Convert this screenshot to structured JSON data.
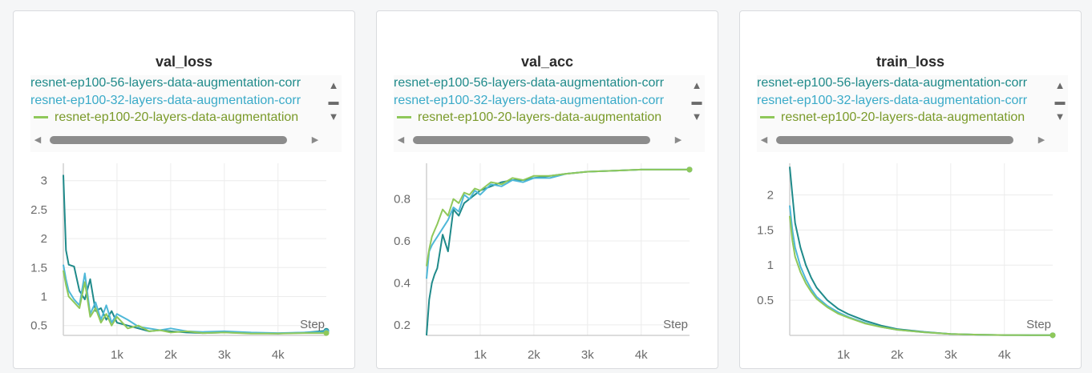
{
  "legend": [
    {
      "name": "resnet-ep100-56-layers-data-augmentation-corr",
      "color": "#1f8a8a",
      "show_swatch": false
    },
    {
      "name": "resnet-ep100-32-layers-data-augmentation-corr",
      "color": "#3aaac8",
      "show_swatch": false
    },
    {
      "name": "resnet-ep100-20-layers-data-augmentation",
      "color": "#7a9a2a",
      "show_swatch": true,
      "swatch_color": "#8fc85a"
    }
  ],
  "series_colors": {
    "s56": "#1f8a8a",
    "s32": "#4fb8d8",
    "s20": "#8fc85a"
  },
  "chart_data": [
    {
      "type": "line",
      "title": "val_loss",
      "xlabel": "Step",
      "xlim": [
        0,
        4900
      ],
      "ylim": [
        0.33,
        3.3
      ],
      "xticks": [
        {
          "v": 1000,
          "label": "1k"
        },
        {
          "v": 2000,
          "label": "2k"
        },
        {
          "v": 3000,
          "label": "3k"
        },
        {
          "v": 4000,
          "label": "4k"
        }
      ],
      "yticks": [
        {
          "v": 0.5,
          "label": "0.5"
        },
        {
          "v": 1,
          "label": "1"
        },
        {
          "v": 1.5,
          "label": "1.5"
        },
        {
          "v": 2,
          "label": "2"
        },
        {
          "v": 2.5,
          "label": "2.5"
        },
        {
          "v": 3,
          "label": "3"
        }
      ],
      "grid": true,
      "series": [
        {
          "key": "s56",
          "x": [
            0,
            50,
            100,
            200,
            300,
            400,
            500,
            600,
            700,
            800,
            900,
            1000,
            1200,
            1400,
            1600,
            1800,
            2000,
            2300,
            2600,
            3000,
            3500,
            4000,
            4500,
            4900
          ],
          "y": [
            3.1,
            1.8,
            1.55,
            1.52,
            1.1,
            0.95,
            1.3,
            0.75,
            0.8,
            0.6,
            0.75,
            0.55,
            0.5,
            0.45,
            0.4,
            0.42,
            0.4,
            0.38,
            0.37,
            0.38,
            0.37,
            0.36,
            0.38,
            0.41
          ]
        },
        {
          "key": "s32",
          "x": [
            0,
            50,
            100,
            200,
            300,
            400,
            500,
            600,
            700,
            800,
            900,
            1000,
            1200,
            1400,
            1600,
            1800,
            2000,
            2300,
            2600,
            3000,
            3500,
            4000,
            4500,
            4900
          ],
          "y": [
            1.55,
            1.3,
            1.1,
            0.95,
            0.85,
            1.4,
            0.7,
            0.9,
            0.6,
            0.85,
            0.55,
            0.7,
            0.6,
            0.48,
            0.45,
            0.42,
            0.45,
            0.4,
            0.39,
            0.4,
            0.38,
            0.37,
            0.38,
            0.39
          ]
        },
        {
          "key": "s20",
          "x": [
            0,
            50,
            100,
            200,
            300,
            400,
            500,
            600,
            700,
            800,
            900,
            1000,
            1200,
            1400,
            1600,
            1800,
            2000,
            2300,
            2600,
            3000,
            3500,
            4000,
            4500,
            4900
          ],
          "y": [
            1.45,
            1.2,
            1.0,
            0.9,
            0.8,
            1.25,
            0.65,
            0.8,
            0.55,
            0.7,
            0.5,
            0.65,
            0.45,
            0.5,
            0.4,
            0.42,
            0.38,
            0.4,
            0.37,
            0.38,
            0.36,
            0.36,
            0.37,
            0.37
          ]
        }
      ]
    },
    {
      "type": "line",
      "title": "val_acc",
      "xlabel": "Step",
      "xlim": [
        0,
        4900
      ],
      "ylim": [
        0.15,
        0.97
      ],
      "xticks": [
        {
          "v": 1000,
          "label": "1k"
        },
        {
          "v": 2000,
          "label": "2k"
        },
        {
          "v": 3000,
          "label": "3k"
        },
        {
          "v": 4000,
          "label": "4k"
        }
      ],
      "yticks": [
        {
          "v": 0.2,
          "label": "0.2"
        },
        {
          "v": 0.4,
          "label": "0.4"
        },
        {
          "v": 0.6,
          "label": "0.6"
        },
        {
          "v": 0.8,
          "label": "0.8"
        }
      ],
      "grid": true,
      "series": [
        {
          "key": "s56",
          "x": [
            0,
            50,
            100,
            150,
            200,
            300,
            400,
            500,
            600,
            700,
            800,
            900,
            1000,
            1200,
            1400,
            1600,
            1800,
            2000,
            2300,
            2600,
            3000,
            3500,
            4000,
            4500,
            4900
          ],
          "y": [
            0.15,
            0.32,
            0.4,
            0.44,
            0.47,
            0.63,
            0.55,
            0.75,
            0.72,
            0.78,
            0.8,
            0.82,
            0.84,
            0.86,
            0.88,
            0.89,
            0.89,
            0.9,
            0.91,
            0.92,
            0.93,
            0.935,
            0.94,
            0.94,
            0.94
          ]
        },
        {
          "key": "s32",
          "x": [
            0,
            50,
            100,
            150,
            200,
            300,
            400,
            500,
            600,
            700,
            800,
            900,
            1000,
            1200,
            1400,
            1600,
            1800,
            2000,
            2300,
            2600,
            3000,
            3500,
            4000,
            4500,
            4900
          ],
          "y": [
            0.42,
            0.55,
            0.58,
            0.6,
            0.62,
            0.66,
            0.7,
            0.76,
            0.74,
            0.82,
            0.8,
            0.84,
            0.82,
            0.87,
            0.86,
            0.89,
            0.88,
            0.9,
            0.9,
            0.92,
            0.93,
            0.935,
            0.94,
            0.94,
            0.94
          ]
        },
        {
          "key": "s20",
          "x": [
            0,
            50,
            100,
            150,
            200,
            300,
            400,
            500,
            600,
            700,
            800,
            900,
            1000,
            1200,
            1400,
            1600,
            1800,
            2000,
            2300,
            2600,
            3000,
            3500,
            4000,
            4500,
            4900
          ],
          "y": [
            0.48,
            0.56,
            0.62,
            0.65,
            0.68,
            0.75,
            0.72,
            0.8,
            0.78,
            0.83,
            0.82,
            0.85,
            0.84,
            0.88,
            0.87,
            0.9,
            0.89,
            0.91,
            0.91,
            0.92,
            0.93,
            0.935,
            0.94,
            0.94,
            0.94
          ]
        }
      ]
    },
    {
      "type": "line",
      "title": "train_loss",
      "xlabel": "Step",
      "xlim": [
        0,
        4900
      ],
      "ylim": [
        0,
        2.45
      ],
      "xticks": [
        {
          "v": 1000,
          "label": "1k"
        },
        {
          "v": 2000,
          "label": "2k"
        },
        {
          "v": 3000,
          "label": "3k"
        },
        {
          "v": 4000,
          "label": "4k"
        }
      ],
      "yticks": [
        {
          "v": 0.5,
          "label": "0.5"
        },
        {
          "v": 1,
          "label": "1"
        },
        {
          "v": 1.5,
          "label": "1.5"
        },
        {
          "v": 2,
          "label": "2"
        }
      ],
      "grid": true,
      "series": [
        {
          "key": "s56",
          "x": [
            0,
            50,
            100,
            200,
            300,
            400,
            500,
            700,
            900,
            1100,
            1400,
            1700,
            2000,
            2500,
            3000,
            3500,
            4000,
            4500,
            4900
          ],
          "y": [
            2.4,
            2.0,
            1.6,
            1.25,
            1.0,
            0.82,
            0.68,
            0.5,
            0.38,
            0.3,
            0.21,
            0.14,
            0.09,
            0.05,
            0.02,
            0.01,
            0.005,
            0.003,
            0.002
          ]
        },
        {
          "key": "s32",
          "x": [
            0,
            50,
            100,
            200,
            300,
            400,
            500,
            700,
            900,
            1100,
            1400,
            1700,
            2000,
            2500,
            3000,
            3500,
            4000,
            4500,
            4900
          ],
          "y": [
            1.85,
            1.5,
            1.25,
            0.98,
            0.8,
            0.66,
            0.55,
            0.42,
            0.33,
            0.26,
            0.18,
            0.12,
            0.08,
            0.045,
            0.02,
            0.01,
            0.005,
            0.003,
            0.002
          ]
        },
        {
          "key": "s20",
          "x": [
            0,
            50,
            100,
            200,
            300,
            400,
            500,
            700,
            900,
            1100,
            1400,
            1700,
            2000,
            2500,
            3000,
            3500,
            4000,
            4500,
            4900
          ],
          "y": [
            1.7,
            1.35,
            1.12,
            0.9,
            0.74,
            0.62,
            0.52,
            0.4,
            0.31,
            0.25,
            0.17,
            0.12,
            0.08,
            0.045,
            0.02,
            0.01,
            0.005,
            0.003,
            0.002
          ]
        }
      ]
    }
  ]
}
